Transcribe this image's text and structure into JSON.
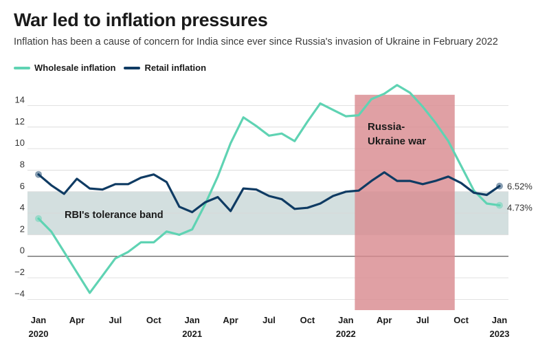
{
  "title": "War led to inflation pressures",
  "subtitle": "Inflation has been a cause of concern for India since ever since Russia's invasion of Ukraine in February 2022",
  "legend": {
    "wholesale": "Wholesale inflation",
    "retail": "Retail inflation"
  },
  "colors": {
    "wholesale": "#5fd3b3",
    "retail": "#0f3b63",
    "band": "#d3dfdf",
    "war": "#d98b90"
  },
  "chart_data": {
    "type": "line",
    "x_months": [
      "2020-01",
      "2020-02",
      "2020-03",
      "2020-04",
      "2020-05",
      "2020-06",
      "2020-07",
      "2020-08",
      "2020-09",
      "2020-10",
      "2020-11",
      "2020-12",
      "2021-01",
      "2021-02",
      "2021-03",
      "2021-04",
      "2021-05",
      "2021-06",
      "2021-07",
      "2021-08",
      "2021-09",
      "2021-10",
      "2021-11",
      "2021-12",
      "2022-01",
      "2022-02",
      "2022-03",
      "2022-04",
      "2022-05",
      "2022-06",
      "2022-07",
      "2022-08",
      "2022-09",
      "2022-10",
      "2022-11",
      "2022-12",
      "2023-01"
    ],
    "series": [
      {
        "name": "Wholesale inflation",
        "key": "wholesale",
        "values": [
          3.5,
          2.3,
          0.4,
          -1.5,
          -3.4,
          -1.8,
          -0.2,
          0.4,
          1.3,
          1.3,
          2.3,
          2.0,
          2.5,
          4.8,
          7.4,
          10.5,
          12.9,
          12.1,
          11.2,
          11.4,
          10.7,
          12.5,
          14.2,
          13.6,
          13.0,
          13.1,
          14.6,
          15.1,
          15.9,
          15.2,
          13.9,
          12.4,
          10.7,
          8.4,
          6.1,
          4.9,
          4.73
        ]
      },
      {
        "name": "Retail inflation",
        "key": "retail",
        "values": [
          7.6,
          6.6,
          5.8,
          7.2,
          6.3,
          6.2,
          6.7,
          6.7,
          7.3,
          7.6,
          6.9,
          4.6,
          4.1,
          5.0,
          5.5,
          4.2,
          6.3,
          6.2,
          5.6,
          5.3,
          4.4,
          4.5,
          4.9,
          5.6,
          6.0,
          6.1,
          7.0,
          7.8,
          7.0,
          7.0,
          6.7,
          7.0,
          7.4,
          6.8,
          5.9,
          5.7,
          6.52
        ]
      }
    ],
    "end_labels": {
      "wholesale": "4.73%",
      "retail": "6.52%"
    },
    "y_ticks": [
      "14",
      "12",
      "10",
      "8",
      "6",
      "4",
      "2",
      "0",
      "−2",
      "−4"
    ],
    "y_tick_values": [
      14,
      12,
      10,
      8,
      6,
      4,
      2,
      0,
      -2,
      -4
    ],
    "ylim": [
      -5,
      15.5
    ],
    "x_ticks": [
      {
        "label": "Jan",
        "year": "2020",
        "index": 0
      },
      {
        "label": "Apr",
        "year": "",
        "index": 3
      },
      {
        "label": "Jul",
        "year": "",
        "index": 6
      },
      {
        "label": "Oct",
        "year": "",
        "index": 9
      },
      {
        "label": "Jan",
        "year": "2021",
        "index": 12
      },
      {
        "label": "Apr",
        "year": "",
        "index": 15
      },
      {
        "label": "Jul",
        "year": "",
        "index": 18
      },
      {
        "label": "Oct",
        "year": "",
        "index": 21
      },
      {
        "label": "Jan",
        "year": "2022",
        "index": 24
      },
      {
        "label": "Apr",
        "year": "",
        "index": 27
      },
      {
        "label": "Jul",
        "year": "",
        "index": 30
      },
      {
        "label": "Oct",
        "year": "",
        "index": 33
      },
      {
        "label": "Jan",
        "year": "2023",
        "index": 36
      }
    ],
    "tolerance_band": {
      "label": "RBI's tolerance band",
      "from": 2,
      "to": 6
    },
    "war_shading": {
      "label_line1": "Russia-",
      "label_line2": "Ukraine war",
      "start_index": 24.7,
      "end_index": 32.5,
      "top_value": 15
    }
  }
}
